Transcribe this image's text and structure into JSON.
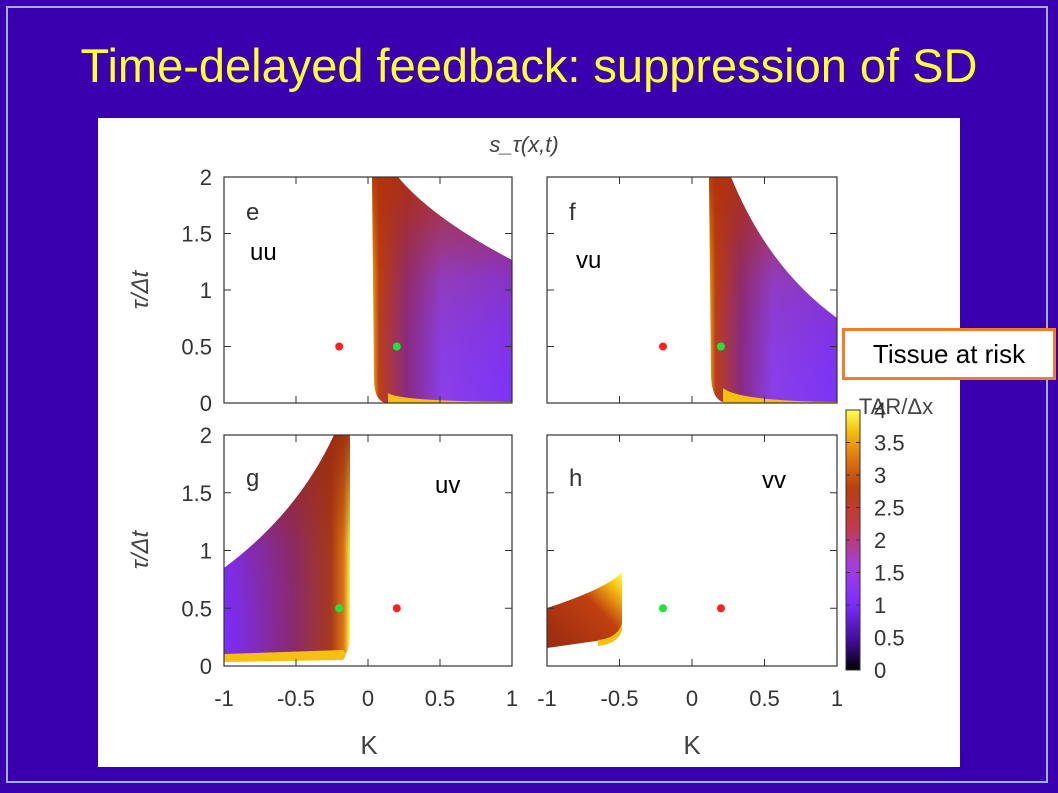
{
  "slide": {
    "title": "Time-delayed feedback: suppression of SD",
    "callout": "Tissue at risk"
  },
  "colors": {
    "background": "#3a00b0",
    "title": "#ffff33",
    "callout_border": "#f07c2c",
    "red_dot": "#ff2020",
    "green_dot": "#22e33b"
  },
  "chart_data": {
    "type": "heatmap",
    "title": "s_τ(x,t)",
    "xlabel": "K",
    "ylabel": "τ/Δt",
    "xlim": [
      -1,
      1
    ],
    "ylim": [
      0,
      2
    ],
    "x_ticks": [
      "-1",
      "-0.5",
      "0",
      "0.5",
      "1"
    ],
    "y_ticks": [
      "0",
      "0.5",
      "1",
      "1.5",
      "2"
    ],
    "colorbar": {
      "label": "TAR/Δx",
      "range": [
        0,
        4
      ],
      "ticks": [
        "0",
        "0.5",
        "1",
        "1.5",
        "2",
        "2.5",
        "3",
        "3.5",
        "4"
      ]
    },
    "panels": [
      {
        "letter": "e",
        "coupling": "uu",
        "red_point": [
          -0.2,
          0.5
        ],
        "green_point": [
          0.2,
          0.5
        ]
      },
      {
        "letter": "f",
        "coupling": "vu",
        "red_point": [
          -0.2,
          0.5
        ],
        "green_point": [
          0.2,
          0.5
        ]
      },
      {
        "letter": "g",
        "coupling": "uv",
        "red_point": [
          0.2,
          0.5
        ],
        "green_point": [
          -0.2,
          0.5
        ]
      },
      {
        "letter": "h",
        "coupling": "vv",
        "red_point": [
          0.2,
          0.5
        ],
        "green_point": [
          -0.2,
          0.5
        ]
      }
    ]
  }
}
